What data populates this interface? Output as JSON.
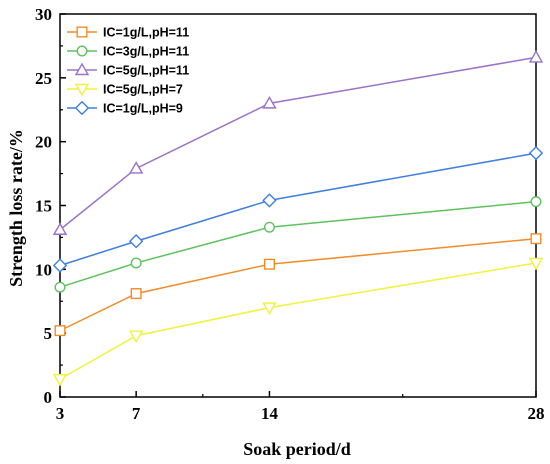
{
  "chart_data": {
    "type": "line",
    "xlabel": "Soak period/d",
    "ylabel": "Strength loss rate/%",
    "x": [
      3,
      7,
      14,
      28
    ],
    "xticks": [
      "3",
      "7",
      "14",
      "28"
    ],
    "xlim": [
      3,
      28
    ],
    "ylim": [
      0,
      30
    ],
    "yticks": [
      "0",
      "5",
      "10",
      "15",
      "20",
      "25",
      "30"
    ],
    "legend_position": "top-left",
    "grid": false,
    "series": [
      {
        "name": "IC=1g/L,pH=11",
        "values": [
          5.2,
          8.1,
          10.4,
          12.4
        ],
        "color": "#F28C28",
        "marker": "square"
      },
      {
        "name": "IC=3g/L,pH=11",
        "values": [
          8.6,
          10.5,
          13.3,
          15.3
        ],
        "color": "#5EC25E",
        "marker": "circle"
      },
      {
        "name": "IC=5g/L,pH=11",
        "values": [
          13.1,
          17.9,
          23.0,
          26.6
        ],
        "color": "#9B72C8",
        "marker": "triangle-up"
      },
      {
        "name": "IC=5g/L,pH=7",
        "values": [
          1.4,
          4.8,
          7.0,
          10.5
        ],
        "color": "#F2F23C",
        "marker": "triangle-down"
      },
      {
        "name": "IC=1g/L,pH=9",
        "values": [
          10.3,
          12.2,
          15.4,
          19.1
        ],
        "color": "#3F7FE0",
        "marker": "diamond"
      }
    ]
  }
}
